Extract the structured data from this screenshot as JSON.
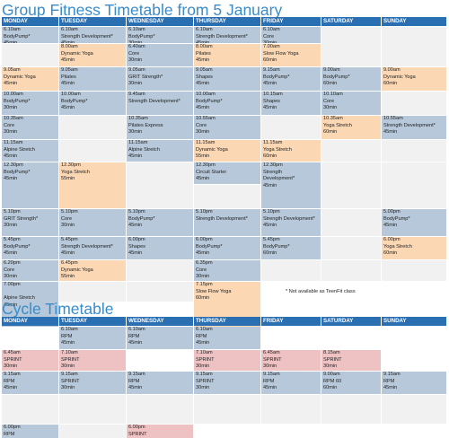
{
  "group_fitness": {
    "title": "Group Fitness Timetable from 5 January",
    "days": [
      "MONDAY",
      "TUESDAY",
      "WEDNESDAY",
      "THURSDAY",
      "FRIDAY",
      "SATURDAY",
      "SUNDAY"
    ],
    "cells": [
      {
        "r": 2,
        "c": 1,
        "rs": 1,
        "color": "blue",
        "lines": [
          "6.10am",
          "BodyPump*",
          "45min"
        ]
      },
      {
        "r": 2,
        "c": 2,
        "rs": 1,
        "color": "blue",
        "lines": [
          "6.10am",
          "Strength Development*",
          "45min"
        ]
      },
      {
        "r": 2,
        "c": 3,
        "rs": 1,
        "color": "blue",
        "lines": [
          "6.10am",
          "BodyPump*",
          "30min"
        ]
      },
      {
        "r": 2,
        "c": 4,
        "rs": 1,
        "color": "blue",
        "lines": [
          "6.10am",
          "Strength Development*",
          "45min"
        ]
      },
      {
        "r": 2,
        "c": 5,
        "rs": 1,
        "color": "blue",
        "lines": [
          "6.10am",
          "Core",
          "30min"
        ]
      },
      {
        "r": 2,
        "c": 6,
        "rs": 2,
        "color": "grey",
        "lines": []
      },
      {
        "r": 2,
        "c": 7,
        "rs": 2,
        "color": "grey",
        "lines": []
      },
      {
        "r": 3,
        "c": 1,
        "rs": 1,
        "color": "grey",
        "lines": []
      },
      {
        "r": 3,
        "c": 2,
        "rs": 1,
        "color": "peach",
        "lines": [
          "8.00am",
          "Dynamic Yoga",
          "45min"
        ]
      },
      {
        "r": 3,
        "c": 3,
        "rs": 1,
        "color": "blue",
        "lines": [
          "6.40am",
          "Core",
          "30min"
        ]
      },
      {
        "r": 3,
        "c": 4,
        "rs": 1,
        "color": "peach",
        "lines": [
          "8.00am",
          "Pilates",
          "45min"
        ]
      },
      {
        "r": 3,
        "c": 5,
        "rs": 1,
        "color": "peach",
        "lines": [
          "7.00am",
          "Slow Flow Yoga",
          "60min"
        ]
      },
      {
        "r": 4,
        "c": 1,
        "rs": 1,
        "color": "peach",
        "lines": [
          "9.05am",
          "Dynamic Yoga",
          "45min"
        ]
      },
      {
        "r": 4,
        "c": 2,
        "rs": 1,
        "color": "blue",
        "lines": [
          "9.05am",
          "Pilates",
          "45min"
        ]
      },
      {
        "r": 4,
        "c": 3,
        "rs": 1,
        "color": "blue",
        "lines": [
          "9.05am",
          "GRIT Strength*",
          "30min"
        ]
      },
      {
        "r": 4,
        "c": 4,
        "rs": 1,
        "color": "blue",
        "lines": [
          "9.05am",
          "Shapes",
          "45min"
        ]
      },
      {
        "r": 4,
        "c": 5,
        "rs": 1,
        "color": "blue",
        "lines": [
          "9.15am",
          "BodyPump*",
          "45min"
        ]
      },
      {
        "r": 4,
        "c": 6,
        "rs": 1,
        "color": "blue",
        "lines": [
          "9.00am",
          "BodyPump*",
          "60min"
        ]
      },
      {
        "r": 4,
        "c": 7,
        "rs": 1,
        "color": "peach",
        "lines": [
          "9.00am",
          "Dynamic Yoga",
          "60min"
        ]
      },
      {
        "r": 5,
        "c": 1,
        "rs": 1,
        "color": "blue",
        "lines": [
          "10.00am",
          "BodyPump*",
          "30min"
        ]
      },
      {
        "r": 5,
        "c": 2,
        "rs": 1,
        "color": "blue",
        "lines": [
          "10.00am",
          "BodyPump*",
          "45min"
        ]
      },
      {
        "r": 5,
        "c": 3,
        "rs": 1,
        "color": "blue",
        "lines": [
          "9.45am",
          "Strength Development*",
          ""
        ]
      },
      {
        "r": 5,
        "c": 4,
        "rs": 1,
        "color": "blue",
        "lines": [
          "10.00am",
          "BodyPump*",
          "45min"
        ]
      },
      {
        "r": 5,
        "c": 5,
        "rs": 1,
        "color": "blue",
        "lines": [
          "10.15am",
          "Shapes",
          "45min"
        ]
      },
      {
        "r": 5,
        "c": 6,
        "rs": 1,
        "color": "blue",
        "lines": [
          "10.10am",
          "Core",
          "30min"
        ]
      },
      {
        "r": 5,
        "c": 7,
        "rs": 1,
        "color": "grey",
        "lines": []
      },
      {
        "r": 6,
        "c": 1,
        "rs": 1,
        "color": "blue",
        "lines": [
          "10.35am",
          "Core",
          "30min"
        ]
      },
      {
        "r": 6,
        "c": 2,
        "rs": 1,
        "color": "grey",
        "lines": []
      },
      {
        "r": 6,
        "c": 3,
        "rs": 1,
        "color": "blue",
        "lines": [
          "10.35am",
          "Pilates Express",
          "30min"
        ]
      },
      {
        "r": 6,
        "c": 4,
        "rs": 1,
        "color": "blue",
        "lines": [
          "10.55am",
          "Core",
          "30min"
        ]
      },
      {
        "r": 6,
        "c": 5,
        "rs": 1,
        "color": "grey",
        "lines": []
      },
      {
        "r": 6,
        "c": 6,
        "rs": 1,
        "color": "peach",
        "lines": [
          "10.35am",
          "Yoga Stretch",
          "60min"
        ]
      },
      {
        "r": 6,
        "c": 7,
        "rs": 1,
        "color": "blue",
        "lines": [
          "10.55am",
          "Strength Development*",
          "45min"
        ]
      },
      {
        "r": 7,
        "c": 1,
        "rs": 1,
        "color": "blue",
        "lines": [
          "11.15am",
          "Alpine Stretch",
          "45min"
        ]
      },
      {
        "r": 7,
        "c": 2,
        "rs": 1,
        "color": "grey",
        "lines": []
      },
      {
        "r": 7,
        "c": 3,
        "rs": 1,
        "color": "blue",
        "lines": [
          "11.15am",
          "Alpine Stretch",
          "45min"
        ]
      },
      {
        "r": 7,
        "c": 4,
        "rs": 1,
        "color": "peach",
        "lines": [
          "11.15am",
          "Dynamic Yoga",
          "55min"
        ]
      },
      {
        "r": 7,
        "c": 5,
        "rs": 1,
        "color": "peach",
        "lines": [
          "11.15am",
          "Yoga Stretch",
          "60min"
        ]
      },
      {
        "r": 7,
        "c": 6,
        "rs": 1,
        "color": "grey",
        "lines": []
      },
      {
        "r": 7,
        "c": 7,
        "rs": 1,
        "color": "grey",
        "lines": []
      },
      {
        "r": 8,
        "c": 1,
        "rs": 2,
        "color": "blue",
        "lines": [
          "12.30pm",
          "BodyPump*",
          "45min"
        ]
      },
      {
        "r": 8,
        "c": 2,
        "rs": 2,
        "color": "peach",
        "lines": [
          "12.30pm",
          "Yoga Stretch",
          "55min"
        ]
      },
      {
        "r": 8,
        "c": 3,
        "rs": 2,
        "color": "grey",
        "lines": []
      },
      {
        "r": 8,
        "c": 4,
        "rs": 1,
        "color": "blue",
        "lines": [
          "12.30pm",
          "Circuit Starter",
          "45min"
        ]
      },
      {
        "r": 8,
        "c": 5,
        "rs": 2,
        "color": "blue",
        "lines": [
          "12.30pm",
          "Strength",
          "Development*",
          "45min"
        ]
      },
      {
        "r": 8,
        "c": 6,
        "rs": 2,
        "color": "grey",
        "lines": []
      },
      {
        "r": 8,
        "c": 7,
        "rs": 2,
        "color": "grey",
        "lines": []
      },
      {
        "r": 9,
        "c": 4,
        "rs": 1,
        "color": "grey",
        "lines": []
      },
      {
        "r": 10,
        "c": 1,
        "rs": 1,
        "color": "blue",
        "lines": [
          "5.10pm",
          "GRIT Strength*",
          "30min"
        ]
      },
      {
        "r": 10,
        "c": 2,
        "rs": 1,
        "color": "blue",
        "lines": [
          "5.10pm",
          "Core",
          "30min"
        ]
      },
      {
        "r": 10,
        "c": 3,
        "rs": 1,
        "color": "blue",
        "lines": [
          "5.10pm",
          "BodyPump*",
          "45min"
        ]
      },
      {
        "r": 10,
        "c": 4,
        "rs": 1,
        "color": "blue",
        "lines": [
          "5.10pm",
          "Strength Development*",
          ""
        ]
      },
      {
        "r": 10,
        "c": 5,
        "rs": 1,
        "color": "blue",
        "lines": [
          "5.10pm",
          "Strength Development*",
          "45min"
        ]
      },
      {
        "r": 10,
        "c": 6,
        "rs": 1,
        "color": "grey",
        "lines": []
      },
      {
        "r": 10,
        "c": 7,
        "rs": 1,
        "color": "blue",
        "lines": [
          "5.00pm",
          "BodyPump*",
          "45min"
        ]
      },
      {
        "r": 11,
        "c": 1,
        "rs": 1,
        "color": "blue",
        "lines": [
          "5.45pm",
          "BodyPump*",
          "45min"
        ]
      },
      {
        "r": 11,
        "c": 2,
        "rs": 1,
        "color": "blue",
        "lines": [
          "5.45pm",
          "Strength Development*",
          "45min"
        ]
      },
      {
        "r": 11,
        "c": 3,
        "rs": 1,
        "color": "blue",
        "lines": [
          "6.00pm",
          "Shapes",
          "45min"
        ]
      },
      {
        "r": 11,
        "c": 4,
        "rs": 1,
        "color": "blue",
        "lines": [
          "6.00pm",
          "BodyPump*",
          "45min"
        ]
      },
      {
        "r": 11,
        "c": 5,
        "rs": 1,
        "color": "blue",
        "lines": [
          "5.45pm",
          "BodyPump*",
          "60min"
        ]
      },
      {
        "r": 11,
        "c": 6,
        "rs": 1,
        "color": "grey",
        "lines": []
      },
      {
        "r": 11,
        "c": 7,
        "rs": 1,
        "color": "peach",
        "lines": [
          "6.00pm",
          "Yoga Stretch",
          "60min"
        ]
      },
      {
        "r": 12,
        "c": 1,
        "rs": 1,
        "color": "blue",
        "lines": [
          "6.20pm",
          "Core",
          "30min"
        ]
      },
      {
        "r": 12,
        "c": 2,
        "rs": 1,
        "color": "peach",
        "lines": [
          "6.45pm",
          "Dynamic Yoga",
          "55min"
        ]
      },
      {
        "r": 12,
        "c": 3,
        "rs": 1,
        "color": "grey",
        "lines": []
      },
      {
        "r": 12,
        "c": 4,
        "rs": 1,
        "color": "blue",
        "lines": [
          "6.35pm",
          "Core",
          "30min"
        ]
      },
      {
        "r": 12,
        "c": 5,
        "rs": 1,
        "color": "grey",
        "lines": []
      },
      {
        "r": 12,
        "c": 6,
        "rs": 1,
        "color": "grey",
        "lines": []
      },
      {
        "r": 12,
        "c": 7,
        "rs": 1,
        "color": "grey",
        "lines": []
      },
      {
        "r": 13,
        "c": 1,
        "rs": 2,
        "color": "blue",
        "lines": [
          "7.00pm",
          "",
          "Alpine Stretch",
          "45min"
        ]
      },
      {
        "r": 13,
        "c": 2,
        "rs": 1,
        "color": "grey",
        "lines": []
      },
      {
        "r": 13,
        "c": 3,
        "rs": 1,
        "color": "grey",
        "lines": []
      },
      {
        "r": 13,
        "c": 4,
        "rs": 2,
        "color": "peach",
        "lines": [
          "7.15pm",
          "Slow Flow Yoga",
          "60min"
        ]
      }
    ],
    "footnote": "* Not available as TeenFit class"
  },
  "cycle": {
    "title": "Cycle Timetable",
    "days": [
      "MONDAY",
      "TUESDAY",
      "WEDNESDAY",
      "THURSDAY",
      "FRIDAY",
      "SATURDAY",
      "SUNDAY"
    ],
    "cells": [
      {
        "r": 2,
        "c": 1,
        "rs": 1,
        "color": "white",
        "lines": []
      },
      {
        "r": 2,
        "c": 2,
        "rs": 1,
        "color": "blue",
        "lines": [
          "6.10am",
          "RPM",
          "45min"
        ]
      },
      {
        "r": 2,
        "c": 3,
        "rs": 1,
        "color": "blue",
        "lines": [
          "6.10am",
          "RPM",
          "45min"
        ]
      },
      {
        "r": 2,
        "c": 4,
        "rs": 1,
        "color": "blue",
        "lines": [
          "6.10am",
          "RPM",
          "45min"
        ]
      },
      {
        "r": 2,
        "c": 5,
        "rs": 1,
        "color": "white",
        "lines": []
      },
      {
        "r": 2,
        "c": 6,
        "rs": 1,
        "color": "white",
        "lines": []
      },
      {
        "r": 2,
        "c": 7,
        "rs": 1,
        "color": "white",
        "lines": []
      },
      {
        "r": 3,
        "c": 1,
        "rs": 1,
        "color": "pink",
        "lines": [
          "6.45am",
          "SPRINT",
          "30min"
        ]
      },
      {
        "r": 3,
        "c": 2,
        "rs": 1,
        "color": "pink",
        "lines": [
          "7.10am",
          "SPRINT",
          "30min"
        ]
      },
      {
        "r": 3,
        "c": 3,
        "rs": 1,
        "color": "white",
        "lines": []
      },
      {
        "r": 3,
        "c": 4,
        "rs": 1,
        "color": "pink",
        "lines": [
          "7.10am",
          "SPRINT",
          "30min"
        ]
      },
      {
        "r": 3,
        "c": 5,
        "rs": 1,
        "color": "pink",
        "lines": [
          "6.45am",
          "SPRINT",
          "30min"
        ]
      },
      {
        "r": 3,
        "c": 6,
        "rs": 1,
        "color": "pink",
        "lines": [
          "8.15am",
          "SPRINT",
          "30min"
        ]
      },
      {
        "r": 3,
        "c": 7,
        "rs": 1,
        "color": "white",
        "lines": []
      },
      {
        "r": 4,
        "c": 1,
        "rs": 1,
        "color": "blue",
        "lines": [
          "9.15am",
          "RPM",
          "45min"
        ]
      },
      {
        "r": 4,
        "c": 2,
        "rs": 1,
        "color": "blue",
        "lines": [
          "9.15am",
          "SPRINT",
          "30min"
        ]
      },
      {
        "r": 4,
        "c": 3,
        "rs": 1,
        "color": "blue",
        "lines": [
          "9.15am",
          "RPM",
          "45min"
        ]
      },
      {
        "r": 4,
        "c": 4,
        "rs": 1,
        "color": "blue",
        "lines": [
          "9.15am",
          "SPRINT",
          "30min"
        ]
      },
      {
        "r": 4,
        "c": 5,
        "rs": 1,
        "color": "blue",
        "lines": [
          "9.15am",
          "RPM",
          "45min"
        ]
      },
      {
        "r": 4,
        "c": 6,
        "rs": 1,
        "color": "blue",
        "lines": [
          "9.00am",
          "RPM 60",
          "60min"
        ]
      },
      {
        "r": 4,
        "c": 7,
        "rs": 1,
        "color": "blue",
        "lines": [
          "9.15am",
          "RPM",
          "45min"
        ]
      },
      {
        "r": 5,
        "c": 1,
        "rs": 1,
        "color": "grey",
        "lines": []
      },
      {
        "r": 5,
        "c": 2,
        "rs": 1,
        "color": "grey",
        "lines": []
      },
      {
        "r": 5,
        "c": 3,
        "rs": 1,
        "color": "grey",
        "lines": []
      },
      {
        "r": 5,
        "c": 4,
        "rs": 1,
        "color": "grey",
        "lines": []
      },
      {
        "r": 5,
        "c": 5,
        "rs": 1,
        "color": "grey",
        "lines": []
      },
      {
        "r": 5,
        "c": 6,
        "rs": 1,
        "color": "grey",
        "lines": []
      },
      {
        "r": 5,
        "c": 7,
        "rs": 1,
        "color": "grey",
        "lines": []
      },
      {
        "r": 6,
        "c": 1,
        "rs": 1,
        "color": "blue",
        "lines": [
          "6.00pm",
          "RPM",
          "45min"
        ]
      },
      {
        "r": 6,
        "c": 2,
        "rs": 1,
        "color": "grey",
        "lines": []
      },
      {
        "r": 6,
        "c": 3,
        "rs": 1,
        "color": "pink",
        "lines": [
          "6.00pm",
          "SPRINT",
          "30min"
        ]
      },
      {
        "r": 6,
        "c": 4,
        "rs": 1,
        "color": "white",
        "lines": []
      },
      {
        "r": 6,
        "c": 5,
        "rs": 1,
        "color": "white",
        "lines": []
      },
      {
        "r": 6,
        "c": 6,
        "rs": 1,
        "color": "white",
        "lines": []
      },
      {
        "r": 6,
        "c": 7,
        "rs": 1,
        "color": "white",
        "lines": []
      }
    ]
  },
  "colors": {
    "title": "#3a8cc9",
    "header": "#2a6fb2",
    "blue": "#b6c8d9",
    "peach": "#fbd7b4",
    "pink": "#eec2c3",
    "grey": "#f1f1f1"
  }
}
